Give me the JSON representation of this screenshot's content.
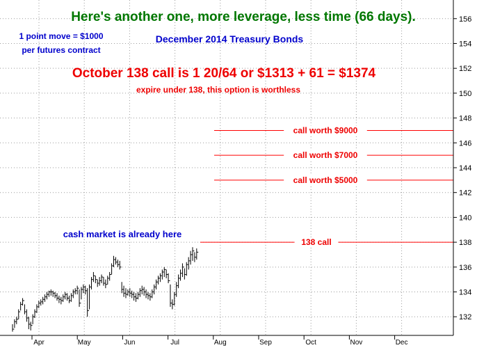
{
  "chart_data": {
    "type": "bar",
    "subtype": "ohlc",
    "headline": "Here's another one, more leverage, less time (66 days).",
    "title": "December 2014 Treasury Bonds",
    "note_left": [
      "1 point move = $1000",
      "per futures contract"
    ],
    "annotation_main": "October 138 call is 1 20/64 or $1313 + 61 = $1374",
    "annotation_sub": "expire under 138, this option is worthless",
    "cash_note": "cash market is already here",
    "y_ticks": [
      132,
      134,
      136,
      138,
      140,
      142,
      144,
      146,
      148,
      150,
      152,
      154,
      156
    ],
    "ylim": [
      130.5,
      157.5
    ],
    "x_ticks": [
      "Apr",
      "May",
      "Jun",
      "Jul",
      "Aug",
      "Sep",
      "Oct",
      "Nov",
      "Dec"
    ],
    "grid": true,
    "levels": [
      {
        "y": 147,
        "label": "call worth $9000"
      },
      {
        "y": 145,
        "label": "call worth $7000"
      },
      {
        "y": 143,
        "label": "call worth $5000"
      },
      {
        "y": 138,
        "label": "138 call"
      }
    ],
    "prices": [
      {
        "h": 131.4,
        "l": 130.8,
        "c": 131.0
      },
      {
        "h": 131.8,
        "l": 131.1,
        "c": 131.6
      },
      {
        "h": 132.0,
        "l": 131.4,
        "c": 131.8
      },
      {
        "h": 132.6,
        "l": 131.8,
        "c": 132.4
      },
      {
        "h": 133.2,
        "l": 132.5,
        "c": 133.0
      },
      {
        "h": 133.5,
        "l": 132.9,
        "c": 133.3
      },
      {
        "h": 133.0,
        "l": 132.2,
        "c": 132.4
      },
      {
        "h": 132.6,
        "l": 131.6,
        "c": 131.9
      },
      {
        "h": 132.0,
        "l": 131.0,
        "c": 131.4
      },
      {
        "h": 131.6,
        "l": 130.9,
        "c": 131.3
      },
      {
        "h": 132.2,
        "l": 131.4,
        "c": 132.0
      },
      {
        "h": 132.6,
        "l": 131.9,
        "c": 132.4
      },
      {
        "h": 133.0,
        "l": 132.3,
        "c": 132.8
      },
      {
        "h": 133.3,
        "l": 132.7,
        "c": 133.1
      },
      {
        "h": 133.4,
        "l": 132.9,
        "c": 133.2
      },
      {
        "h": 133.6,
        "l": 133.0,
        "c": 133.4
      },
      {
        "h": 133.8,
        "l": 133.2,
        "c": 133.6
      },
      {
        "h": 134.0,
        "l": 133.4,
        "c": 133.8
      },
      {
        "h": 134.1,
        "l": 133.6,
        "c": 134.0
      },
      {
        "h": 134.2,
        "l": 133.7,
        "c": 134.0
      },
      {
        "h": 134.1,
        "l": 133.6,
        "c": 133.9
      },
      {
        "h": 134.0,
        "l": 133.5,
        "c": 133.7
      },
      {
        "h": 133.9,
        "l": 133.3,
        "c": 133.5
      },
      {
        "h": 133.7,
        "l": 133.1,
        "c": 133.4
      },
      {
        "h": 133.6,
        "l": 133.0,
        "c": 133.3
      },
      {
        "h": 133.8,
        "l": 133.2,
        "c": 133.6
      },
      {
        "h": 134.0,
        "l": 133.4,
        "c": 133.8
      },
      {
        "h": 133.9,
        "l": 133.3,
        "c": 133.5
      },
      {
        "h": 133.7,
        "l": 133.1,
        "c": 133.3
      },
      {
        "h": 133.9,
        "l": 133.2,
        "c": 133.7
      },
      {
        "h": 134.2,
        "l": 133.5,
        "c": 134.0
      },
      {
        "h": 134.3,
        "l": 133.8,
        "c": 134.1
      },
      {
        "h": 134.5,
        "l": 133.8,
        "c": 134.3
      },
      {
        "h": 134.2,
        "l": 132.8,
        "c": 133.1
      },
      {
        "h": 134.4,
        "l": 133.4,
        "c": 134.2
      },
      {
        "h": 134.6,
        "l": 133.9,
        "c": 134.4
      },
      {
        "h": 134.5,
        "l": 133.8,
        "c": 134.1
      },
      {
        "h": 134.3,
        "l": 132.0,
        "c": 132.5
      },
      {
        "h": 134.6,
        "l": 132.6,
        "c": 134.4
      },
      {
        "h": 135.2,
        "l": 134.2,
        "c": 135.0
      },
      {
        "h": 135.6,
        "l": 134.8,
        "c": 135.3
      },
      {
        "h": 135.3,
        "l": 134.7,
        "c": 135.0
      },
      {
        "h": 135.0,
        "l": 134.4,
        "c": 134.7
      },
      {
        "h": 135.2,
        "l": 134.5,
        "c": 134.9
      },
      {
        "h": 135.4,
        "l": 134.7,
        "c": 135.2
      },
      {
        "h": 135.2,
        "l": 134.5,
        "c": 134.7
      },
      {
        "h": 135.0,
        "l": 134.3,
        "c": 134.6
      },
      {
        "h": 135.3,
        "l": 134.6,
        "c": 135.1
      },
      {
        "h": 135.6,
        "l": 134.9,
        "c": 135.4
      },
      {
        "h": 136.3,
        "l": 135.4,
        "c": 136.1
      },
      {
        "h": 136.9,
        "l": 136.0,
        "c": 136.6
      },
      {
        "h": 136.8,
        "l": 136.2,
        "c": 136.4
      },
      {
        "h": 136.6,
        "l": 136.0,
        "c": 136.2
      },
      {
        "h": 136.5,
        "l": 135.8,
        "c": 136.0
      },
      {
        "h": 134.8,
        "l": 133.9,
        "c": 134.2
      },
      {
        "h": 134.5,
        "l": 133.6,
        "c": 133.9
      },
      {
        "h": 134.3,
        "l": 133.5,
        "c": 133.8
      },
      {
        "h": 134.2,
        "l": 133.7,
        "c": 134.0
      },
      {
        "h": 134.3,
        "l": 133.6,
        "c": 133.9
      },
      {
        "h": 134.1,
        "l": 133.5,
        "c": 133.8
      },
      {
        "h": 134.0,
        "l": 133.3,
        "c": 133.6
      },
      {
        "h": 133.9,
        "l": 133.2,
        "c": 133.5
      },
      {
        "h": 134.0,
        "l": 133.4,
        "c": 133.8
      },
      {
        "h": 134.3,
        "l": 133.6,
        "c": 134.1
      },
      {
        "h": 134.5,
        "l": 133.8,
        "c": 134.2
      },
      {
        "h": 134.4,
        "l": 133.7,
        "c": 134.0
      },
      {
        "h": 134.2,
        "l": 133.5,
        "c": 133.8
      },
      {
        "h": 134.0,
        "l": 133.4,
        "c": 133.7
      },
      {
        "h": 133.9,
        "l": 133.3,
        "c": 133.6
      },
      {
        "h": 134.2,
        "l": 133.5,
        "c": 134.0
      },
      {
        "h": 134.6,
        "l": 133.8,
        "c": 134.4
      },
      {
        "h": 135.0,
        "l": 134.2,
        "c": 134.8
      },
      {
        "h": 135.3,
        "l": 134.6,
        "c": 135.1
      },
      {
        "h": 135.5,
        "l": 134.8,
        "c": 135.3
      },
      {
        "h": 135.8,
        "l": 135.0,
        "c": 135.6
      },
      {
        "h": 136.0,
        "l": 135.2,
        "c": 135.8
      },
      {
        "h": 135.8,
        "l": 135.1,
        "c": 135.4
      },
      {
        "h": 135.5,
        "l": 134.7,
        "c": 134.9
      },
      {
        "h": 134.6,
        "l": 132.8,
        "c": 133.1
      },
      {
        "h": 133.4,
        "l": 132.6,
        "c": 133.0
      },
      {
        "h": 134.0,
        "l": 132.9,
        "c": 133.8
      },
      {
        "h": 134.8,
        "l": 133.6,
        "c": 134.5
      },
      {
        "h": 135.4,
        "l": 134.3,
        "c": 135.1
      },
      {
        "h": 135.8,
        "l": 134.9,
        "c": 135.5
      },
      {
        "h": 136.3,
        "l": 135.2,
        "c": 136.0
      },
      {
        "h": 135.9,
        "l": 135.0,
        "c": 135.4
      },
      {
        "h": 136.4,
        "l": 135.3,
        "c": 136.2
      },
      {
        "h": 136.8,
        "l": 135.8,
        "c": 136.5
      },
      {
        "h": 137.3,
        "l": 136.2,
        "c": 137.0
      },
      {
        "h": 137.6,
        "l": 136.5,
        "c": 137.3
      },
      {
        "h": 137.2,
        "l": 136.4,
        "c": 136.8
      },
      {
        "h": 137.5,
        "l": 136.6,
        "c": 137.2
      }
    ]
  }
}
